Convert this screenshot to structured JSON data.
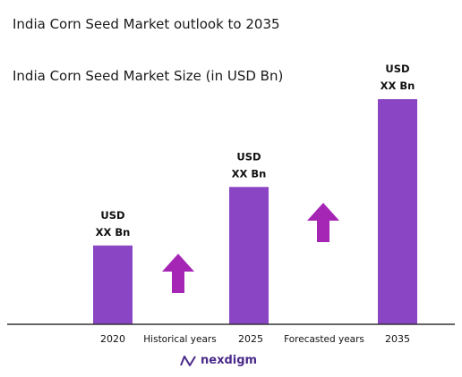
{
  "title": "India Corn Seed Market outlook to 2035",
  "subtitle": "India Corn Seed Market Size (in USD Bn)",
  "chart_data": {
    "type": "bar",
    "categories": [
      "2020",
      "2025",
      "2035"
    ],
    "values": [
      0.35,
      0.61,
      1.0
    ],
    "value_labels": [
      [
        "USD",
        "XX Bn"
      ],
      [
        "USD",
        "XX Bn"
      ],
      [
        "USD",
        "XX Bn"
      ]
    ],
    "x_annotations": [
      "Historical years",
      "Forecasted years"
    ],
    "ylim": [
      0,
      1
    ],
    "grid": false,
    "legend": "none",
    "colors": {
      "bar": "#8a45c4",
      "arrow": "#a526b5",
      "axis": "#333333"
    }
  },
  "brand": {
    "name": "nexdigm",
    "icon": "nexdigm-logo-icon"
  }
}
